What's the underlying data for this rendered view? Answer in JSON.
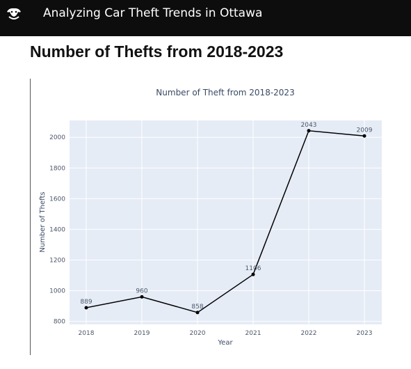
{
  "header": {
    "app_title": "Analyzing Car Theft Trends in Ottawa",
    "logo_icon": "brand-logo-icon",
    "background": "#0d0d0d"
  },
  "main": {
    "heading": "Number of Thefts from 2018-2023"
  },
  "chart_data": {
    "type": "line",
    "title": "Number of Theft from 2018-2023",
    "xlabel": "Year",
    "ylabel": "Number of Thefts",
    "categories": [
      "2018",
      "2019",
      "2020",
      "2021",
      "2022",
      "2023"
    ],
    "values": [
      889,
      960,
      858,
      1106,
      2043,
      2009
    ],
    "data_labels": [
      "889",
      "960",
      "858",
      "1106",
      "2043",
      "2009"
    ],
    "y_ticks": [
      800,
      1000,
      1200,
      1400,
      1600,
      1800,
      2000
    ],
    "y_tick_labels": [
      "800",
      "1000",
      "1200",
      "1400",
      "1600",
      "1800",
      "2000"
    ],
    "ylim": [
      780,
      2110
    ],
    "grid": true,
    "line_color": "#000000",
    "plot_background": "#e5ecf6"
  }
}
